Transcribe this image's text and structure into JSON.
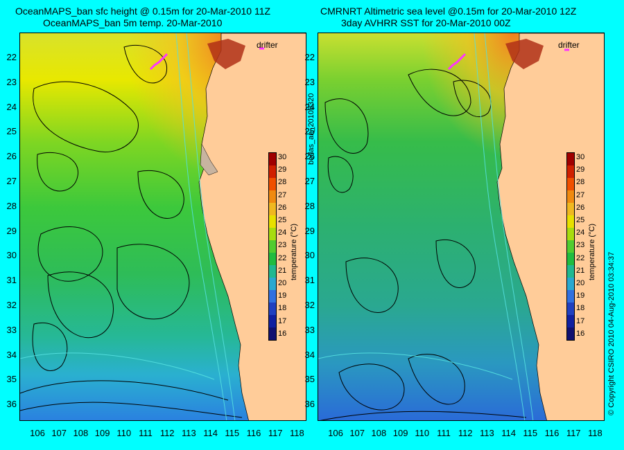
{
  "left": {
    "title_line1": "OceanMAPS_ban sfc height @ 0.15m for 20-Mar-2010 11Z",
    "title_line2": "OceanMAPS_ban 5m temp. 20-Mar-2010",
    "drifter_label": "drifter",
    "colorbar_label": "temperature (°C)"
  },
  "right": {
    "title_line1": "CMRNRT Altimetric sea level  @0.15m  for 20-Mar-2010 12Z",
    "title_line2": "3day AVHRR SST for 20-Mar-2010 00Z",
    "drifter_label": "drifter",
    "colorbar_label": "temperature (°C)"
  },
  "map": {
    "lat_labels": [
      "22",
      "23",
      "24",
      "25",
      "26",
      "27",
      "28",
      "29",
      "30",
      "31",
      "32",
      "33",
      "34",
      "35",
      "36"
    ],
    "lon_labels": [
      "106",
      "107",
      "108",
      "109",
      "110",
      "111",
      "112",
      "113",
      "114",
      "115",
      "116",
      "117",
      "118"
    ],
    "colorbar_ticks": [
      "30",
      "29",
      "28",
      "27",
      "26",
      "25",
      "24",
      "23",
      "22",
      "21",
      "20",
      "19",
      "18",
      "17",
      "16"
    ]
  },
  "side_text": {
    "center": "bodas_an_20100320",
    "right": "© Copyright CSIRO 2010  04-Aug-2010 03:34:37"
  },
  "colors": {
    "background": "#00ffff",
    "land": "#ffcc99",
    "drifter": "#ff33ff"
  }
}
